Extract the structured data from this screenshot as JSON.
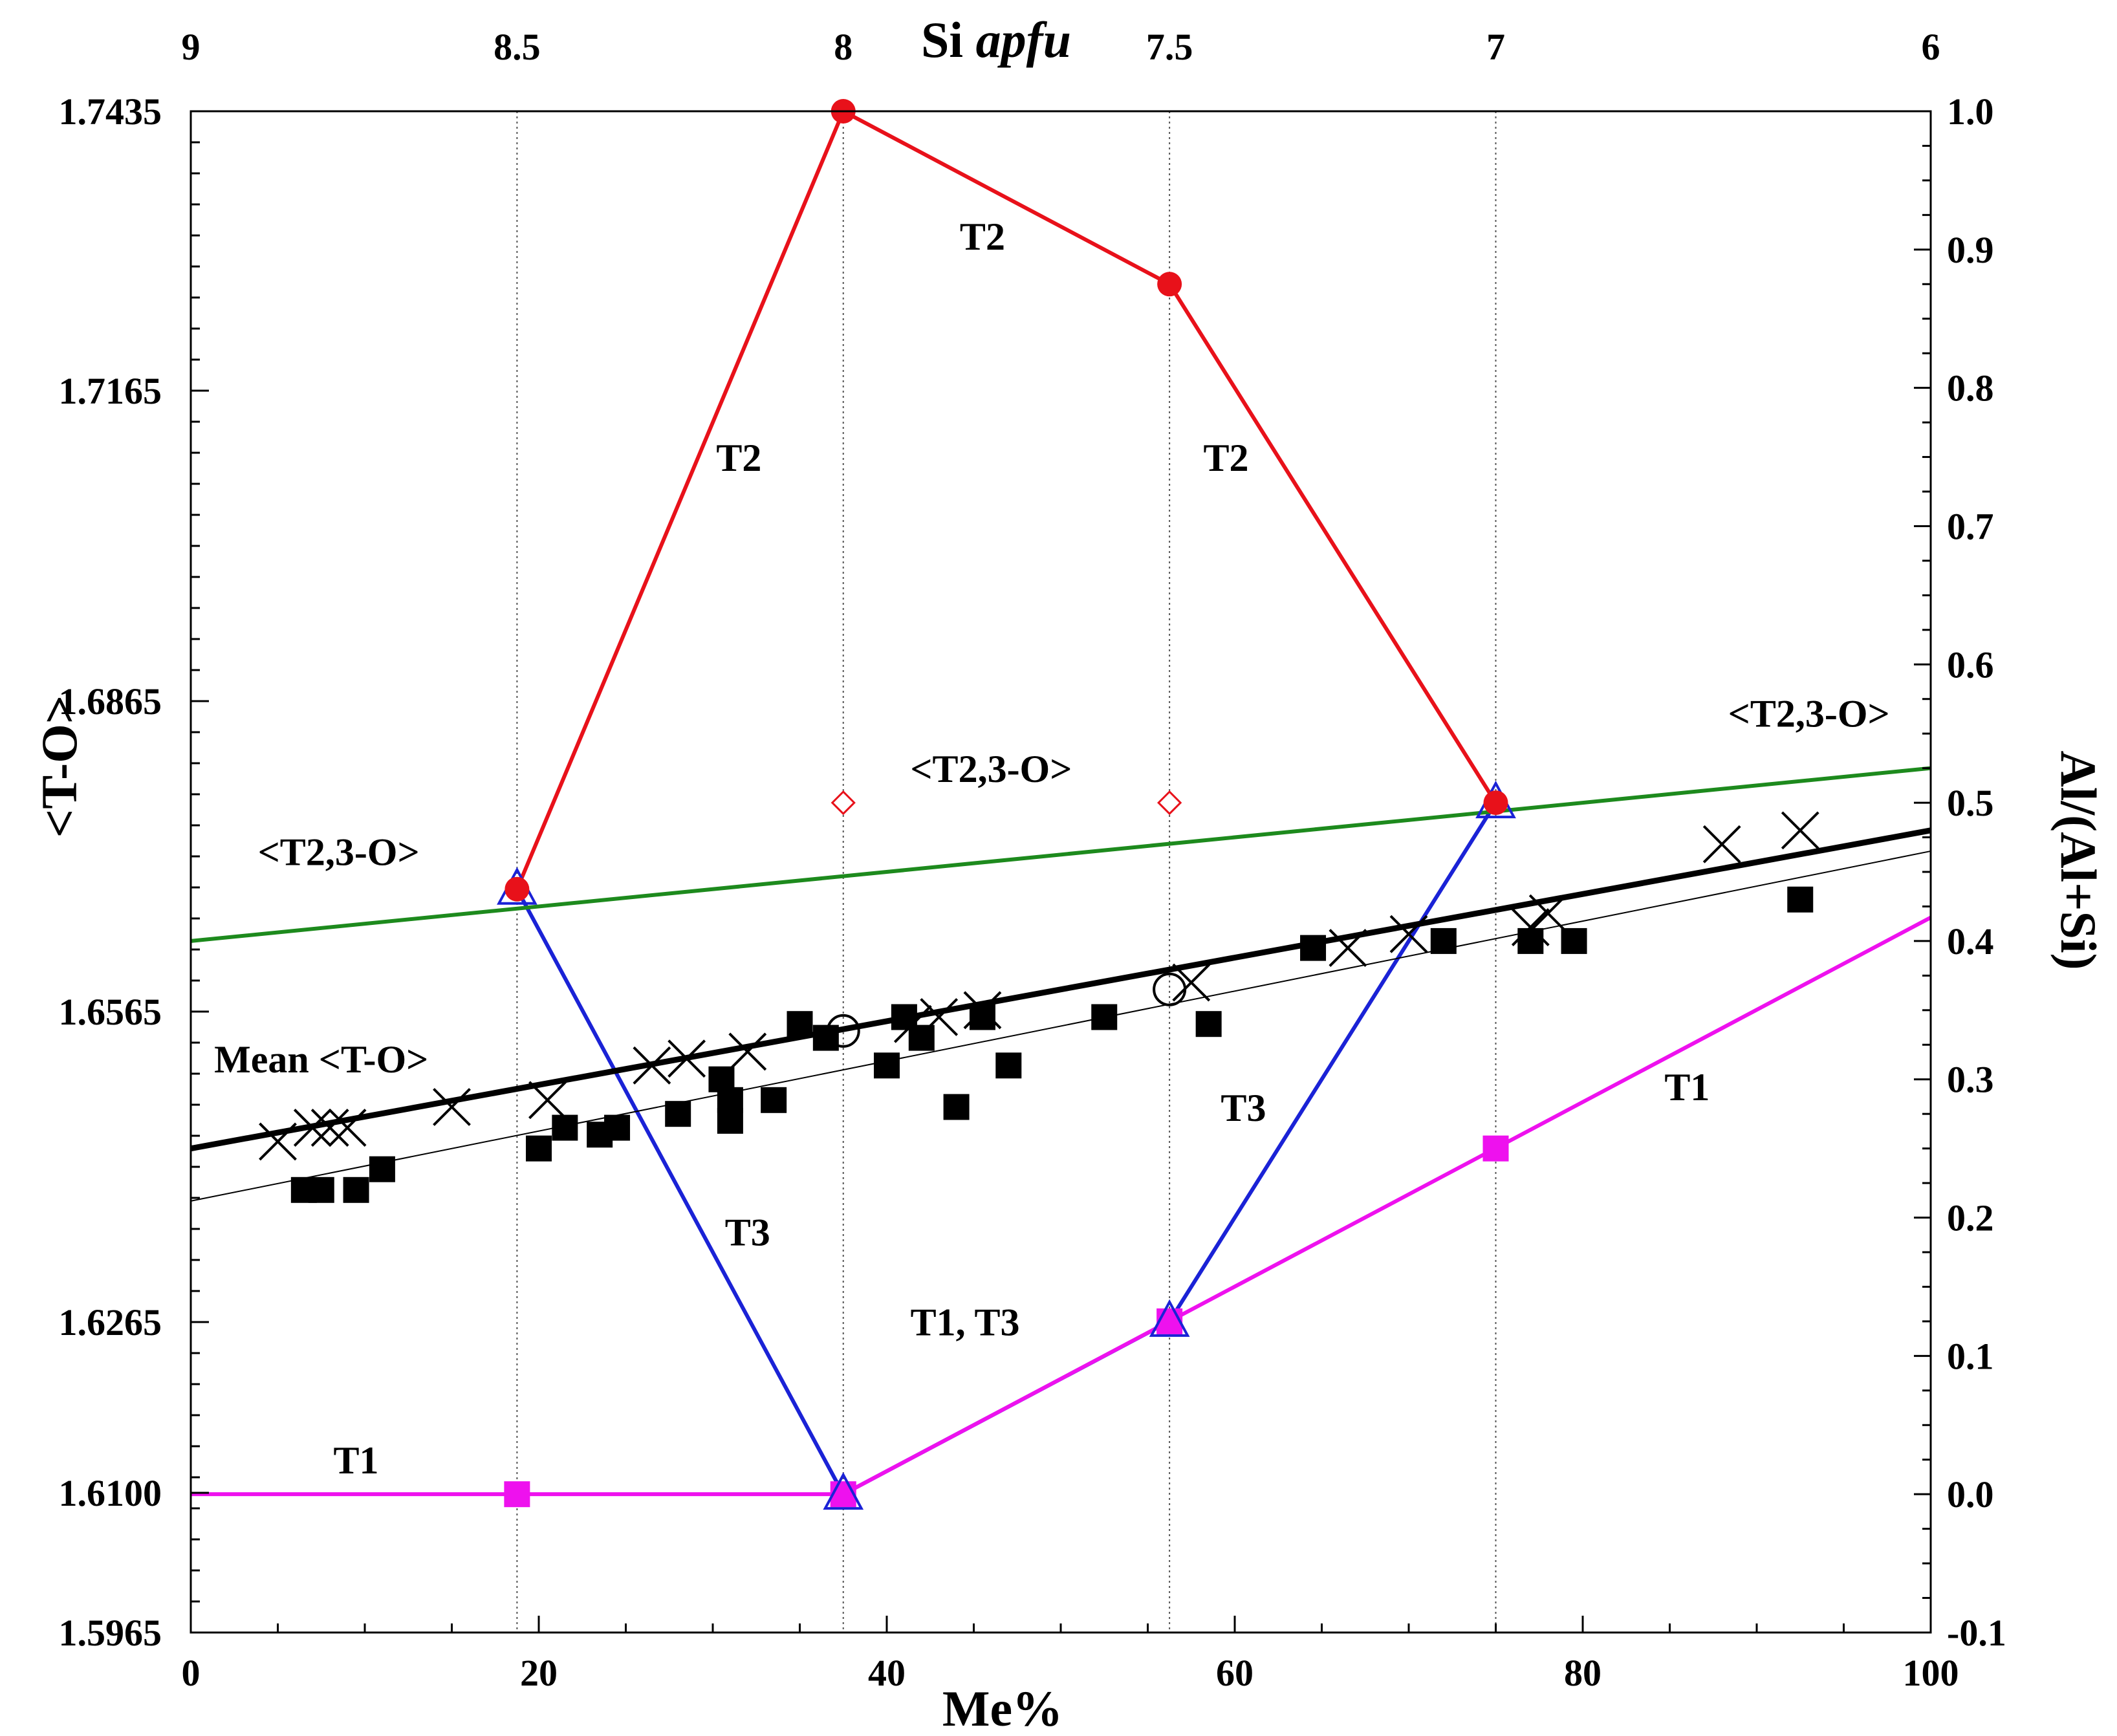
{
  "chart_data": {
    "type": "scatter",
    "xlabel": "Me%",
    "x_top_label_prefix": "Si ",
    "x_top_label_italic": "apfu",
    "ylabel_left": "<T-O>",
    "ylabel_right": "Al/(Al+Si)",
    "xlim": [
      0,
      100
    ],
    "ylim_left": [
      1.5965,
      1.7435
    ],
    "ylim_right": [
      -0.1,
      1.0
    ],
    "x_ticks": [
      {
        "value": 0,
        "label": "0"
      },
      {
        "value": 20,
        "label": "20"
      },
      {
        "value": 40,
        "label": "40"
      },
      {
        "value": 60,
        "label": "60"
      },
      {
        "value": 80,
        "label": "80"
      },
      {
        "value": 100,
        "label": "100"
      }
    ],
    "x_top_ticks": [
      {
        "value": 0,
        "label": "9"
      },
      {
        "value": 18.75,
        "label": "8.5"
      },
      {
        "value": 37.5,
        "label": "8"
      },
      {
        "value": 56.25,
        "label": "7.5"
      },
      {
        "value": 75,
        "label": "7"
      },
      {
        "value": 100,
        "label": "6"
      }
    ],
    "y_left_ticks": [
      {
        "value": 1.7435,
        "label": "1.7435"
      },
      {
        "value": 1.7165,
        "label": "1.7165"
      },
      {
        "value": 1.6865,
        "label": "1.6865"
      },
      {
        "value": 1.6565,
        "label": "1.6565"
      },
      {
        "value": 1.6265,
        "label": "1.6265"
      },
      {
        "value": 1.61,
        "label": "1.6100"
      },
      {
        "value": 1.5965,
        "label": "1.5965"
      }
    ],
    "y_right_ticks": [
      {
        "value": 1.0,
        "label": "1.0"
      },
      {
        "value": 0.9,
        "label": "0.9"
      },
      {
        "value": 0.8,
        "label": "0.8"
      },
      {
        "value": 0.7,
        "label": "0.7"
      },
      {
        "value": 0.6,
        "label": "0.6"
      },
      {
        "value": 0.5,
        "label": "0.5"
      },
      {
        "value": 0.4,
        "label": "0.4"
      },
      {
        "value": 0.3,
        "label": "0.3"
      },
      {
        "value": 0.2,
        "label": "0.2"
      },
      {
        "value": 0.1,
        "label": "0.1"
      },
      {
        "value": 0.0,
        "label": "0.0"
      },
      {
        "value": -0.1,
        "label": "-0.1"
      }
    ],
    "vertical_gridlines_x": [
      18.75,
      37.5,
      56.25,
      75
    ],
    "series": [
      {
        "name": "T2",
        "color": "#e8111a",
        "axis": "right",
        "marker": "circle",
        "points": [
          [
            18.75,
            0.4375
          ],
          [
            37.5,
            1.0
          ],
          [
            56.25,
            0.875
          ],
          [
            75,
            0.5
          ]
        ]
      },
      {
        "name": "T3",
        "color": "#1a22d6",
        "axis": "right",
        "marker": "triangle",
        "points": [
          [
            18.75,
            0.4375
          ],
          [
            37.5,
            0.0
          ],
          [
            56.25,
            0.125
          ],
          [
            75,
            0.5
          ]
        ]
      },
      {
        "name": "T1",
        "color": "#ee11ee",
        "axis": "right",
        "marker": "square",
        "line_x_range": [
          0,
          100
        ],
        "points_line": [
          [
            0,
            0.0
          ],
          [
            37.5,
            0.0
          ],
          [
            100,
            0.417
          ]
        ],
        "points": [
          [
            18.75,
            0.0
          ],
          [
            37.5,
            0.0
          ],
          [
            56.25,
            0.125
          ],
          [
            75,
            0.25
          ]
        ]
      },
      {
        "name": "<T2,3-O>",
        "color": "#1d8a1d",
        "axis": "right",
        "marker": "none",
        "points": [
          [
            0,
            0.4
          ],
          [
            100,
            0.525
          ]
        ]
      },
      {
        "name": "<T2,3-O> open diamonds",
        "color": "#e8111a",
        "axis": "right",
        "marker": "open-diamond",
        "points": [
          [
            37.5,
            0.5
          ],
          [
            56.25,
            0.5
          ]
        ]
      },
      {
        "name": "Mean <T-O>",
        "color": "#000000",
        "axis": "right",
        "marker": "none",
        "width": "thick",
        "points": [
          [
            0,
            0.25
          ],
          [
            100,
            0.48
          ]
        ]
      },
      {
        "name": "thin regression",
        "color": "#000000",
        "axis": "right",
        "marker": "none",
        "width": "thin",
        "points": [
          [
            0,
            0.212
          ],
          [
            100,
            0.465
          ]
        ]
      },
      {
        "name": "filled squares",
        "color": "#000000",
        "axis": "right",
        "marker": "square",
        "points": [
          [
            6.5,
            0.22
          ],
          [
            7.5,
            0.22
          ],
          [
            9.5,
            0.22
          ],
          [
            11,
            0.235
          ],
          [
            20,
            0.25
          ],
          [
            21.5,
            0.265
          ],
          [
            23.5,
            0.26
          ],
          [
            24.5,
            0.265
          ],
          [
            28,
            0.275
          ],
          [
            30.5,
            0.3
          ],
          [
            31,
            0.285
          ],
          [
            31,
            0.27
          ],
          [
            33.5,
            0.285
          ],
          [
            35,
            0.34
          ],
          [
            36.5,
            0.33
          ],
          [
            40,
            0.31
          ],
          [
            41,
            0.345
          ],
          [
            42,
            0.33
          ],
          [
            44,
            0.28
          ],
          [
            45.5,
            0.345
          ],
          [
            47,
            0.31
          ],
          [
            52.5,
            0.345
          ],
          [
            58.5,
            0.34
          ],
          [
            64.5,
            0.395
          ],
          [
            72,
            0.4
          ],
          [
            77,
            0.4
          ],
          [
            79.5,
            0.4
          ],
          [
            92.5,
            0.43
          ]
        ]
      },
      {
        "name": "crosses",
        "color": "#000000",
        "axis": "right",
        "marker": "x",
        "points": [
          [
            5,
            0.255
          ],
          [
            7,
            0.265
          ],
          [
            8,
            0.265
          ],
          [
            9,
            0.265
          ],
          [
            15,
            0.28
          ],
          [
            20.5,
            0.285
          ],
          [
            26.5,
            0.31
          ],
          [
            28.5,
            0.315
          ],
          [
            32,
            0.32
          ],
          [
            41.5,
            0.34
          ],
          [
            43,
            0.345
          ],
          [
            45.5,
            0.35
          ],
          [
            57.5,
            0.37
          ],
          [
            66.5,
            0.395
          ],
          [
            70,
            0.405
          ],
          [
            77,
            0.41
          ],
          [
            78,
            0.42
          ],
          [
            88,
            0.47
          ],
          [
            92.5,
            0.48
          ]
        ]
      },
      {
        "name": "open circles",
        "color": "#000000",
        "axis": "right",
        "marker": "open-circle",
        "points": [
          [
            37.5,
            0.335
          ],
          [
            56.25,
            0.365
          ]
        ]
      }
    ],
    "annotations": [
      {
        "text": "T2",
        "x": 45.5,
        "y": 0.9,
        "color": "#000000"
      },
      {
        "text": "T2",
        "x": 31.5,
        "y": 0.74,
        "color": "#000000"
      },
      {
        "text": "T2",
        "x": 59.5,
        "y": 0.74,
        "color": "#000000"
      },
      {
        "text": "<T2,3-O>",
        "x": 93,
        "y": 0.555,
        "color": "#000000"
      },
      {
        "text": "<T2,3-O>",
        "x": 46,
        "y": 0.515,
        "color": "#000000"
      },
      {
        "text": "<T2,3-O>",
        "x": 8.5,
        "y": 0.455,
        "color": "#000000"
      },
      {
        "text": "Mean <T-O>",
        "x": 7.5,
        "y": 0.305,
        "color": "#000000"
      },
      {
        "text": "T3",
        "x": 60.5,
        "y": 0.27,
        "color": "#000000"
      },
      {
        "text": "T1",
        "x": 86,
        "y": 0.285,
        "color": "#000000"
      },
      {
        "text": "T3",
        "x": 32,
        "y": 0.18,
        "color": "#000000"
      },
      {
        "text": "T1, T3",
        "x": 44.5,
        "y": 0.115,
        "color": "#000000"
      },
      {
        "text": "T1",
        "x": 9.5,
        "y": 0.015,
        "color": "#000000"
      }
    ]
  }
}
